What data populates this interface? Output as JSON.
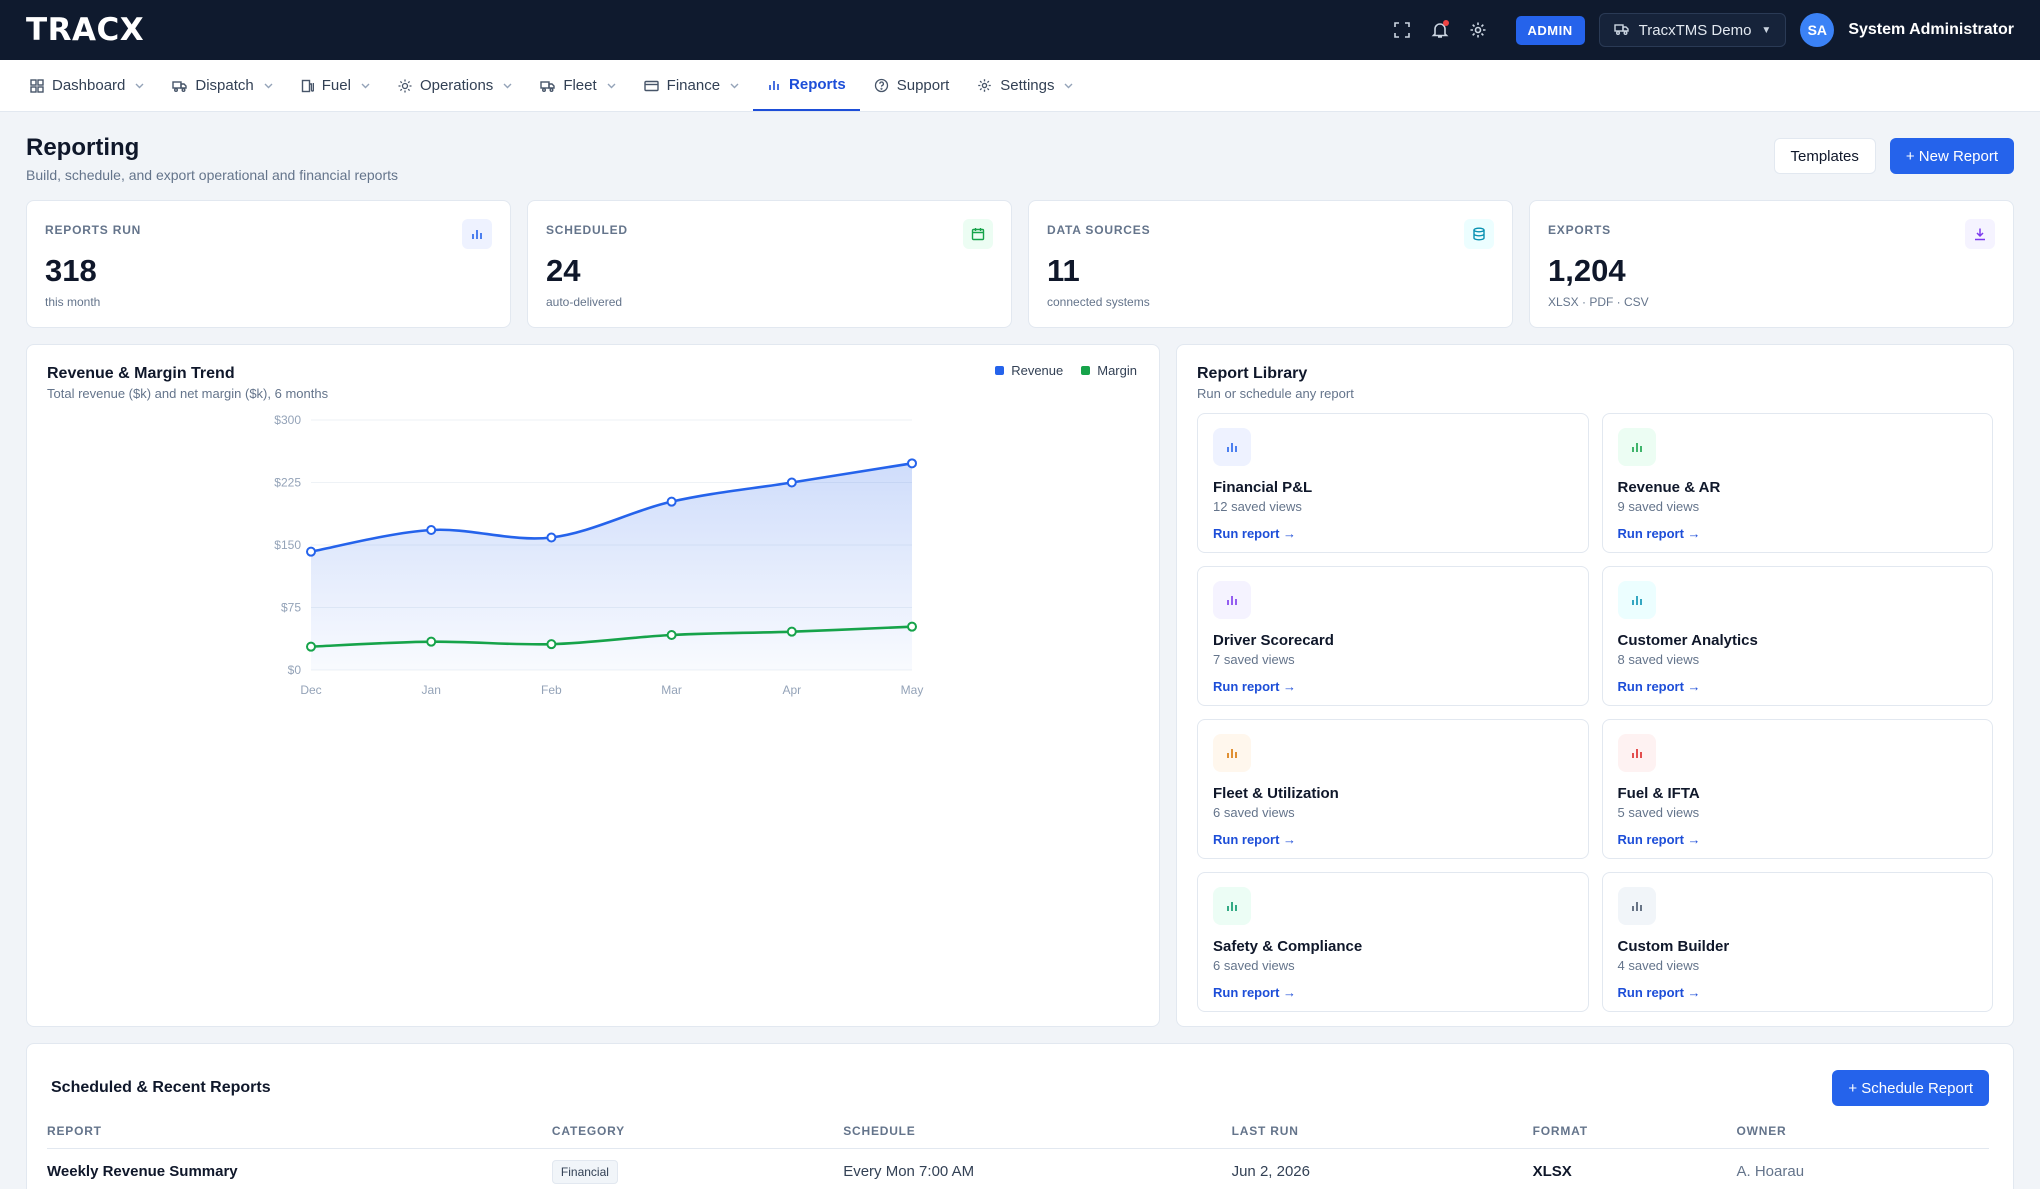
{
  "brand": {
    "logo": "TRACX"
  },
  "topbar": {
    "admin_badge": "ADMIN",
    "tenant": "TracxTMS Demo",
    "avatar_initials": "SA",
    "user_name": "System Administrator"
  },
  "nav": [
    {
      "label": "Dashboard",
      "icon": "grid-icon",
      "dropdown": true
    },
    {
      "label": "Dispatch",
      "icon": "truck-icon",
      "dropdown": true
    },
    {
      "label": "Fuel",
      "icon": "fuel-icon",
      "dropdown": true
    },
    {
      "label": "Operations",
      "icon": "sun-icon",
      "dropdown": true
    },
    {
      "label": "Fleet",
      "icon": "truck-icon",
      "dropdown": true
    },
    {
      "label": "Finance",
      "icon": "card-icon",
      "dropdown": true
    },
    {
      "label": "Reports",
      "icon": "bar-chart-icon",
      "dropdown": false,
      "active": true
    },
    {
      "label": "Support",
      "icon": "help-icon",
      "dropdown": false
    },
    {
      "label": "Settings",
      "icon": "gear-icon",
      "dropdown": true
    }
  ],
  "page": {
    "title": "Reporting",
    "subtitle": "Build, schedule, and export operational and financial reports",
    "templates_label": "Templates",
    "new_report_label": "+ New Report"
  },
  "stats": [
    {
      "label": "REPORTS RUN",
      "value": "318",
      "note": "this month",
      "icon": "bar-chart-icon",
      "color": "#2563eb",
      "bg": "#eef2ff"
    },
    {
      "label": "SCHEDULED",
      "value": "24",
      "note": "auto-delivered",
      "icon": "calendar-icon",
      "color": "#16a34a",
      "bg": "#ecfdf3"
    },
    {
      "label": "DATA SOURCES",
      "value": "11",
      "note": "connected systems",
      "icon": "database-icon",
      "color": "#0891b2",
      "bg": "#ecfeff"
    },
    {
      "label": "EXPORTS",
      "value": "1,204",
      "note": "XLSX · PDF · CSV",
      "icon": "download-icon",
      "color": "#7c3aed",
      "bg": "#f5f3ff"
    }
  ],
  "chart_panel": {
    "title": "Revenue & Margin Trend",
    "subtitle": "Total revenue ($k) and net margin ($k), 6 months"
  },
  "chart_data": {
    "type": "line",
    "title": "Revenue & Margin Trend",
    "subtitle": "Total revenue ($k) and net margin ($k), 6 months",
    "categories": [
      "Dec",
      "Jan",
      "Feb",
      "Mar",
      "Apr",
      "May"
    ],
    "ylim": [
      0,
      300
    ],
    "yticks": [
      0,
      75,
      150,
      225,
      300
    ],
    "ytick_labels": [
      "$0",
      "$75",
      "$150",
      "$225",
      "$300"
    ],
    "grid": true,
    "legend_position": "top-right",
    "series": [
      {
        "name": "Revenue",
        "color": "#2563eb",
        "fill": "area",
        "values": [
          142,
          168,
          159,
          202,
          225,
          248
        ]
      },
      {
        "name": "Margin",
        "color": "#16a34a",
        "values": [
          28,
          34,
          31,
          42,
          46,
          52
        ]
      }
    ]
  },
  "library": {
    "title": "Report Library",
    "subtitle": "Run or schedule any report",
    "run_label": "Run report →",
    "items": [
      {
        "name": "Financial P&L",
        "views": "12 saved views",
        "icon": "bar-chart-icon",
        "color": "#2563eb",
        "bg": "#eef2ff"
      },
      {
        "name": "Revenue & AR",
        "views": "9 saved views",
        "icon": "bar-chart-icon",
        "color": "#16a34a",
        "bg": "#ecfdf3"
      },
      {
        "name": "Driver Scorecard",
        "views": "7 saved views",
        "icon": "bar-chart-icon",
        "color": "#7c3aed",
        "bg": "#f5f3ff"
      },
      {
        "name": "Customer Analytics",
        "views": "8 saved views",
        "icon": "bar-chart-icon",
        "color": "#0891b2",
        "bg": "#ecfeff"
      },
      {
        "name": "Fleet & Utilization",
        "views": "6 saved views",
        "icon": "bar-chart-icon",
        "color": "#d97706",
        "bg": "#fff7ed"
      },
      {
        "name": "Fuel & IFTA",
        "views": "5 saved views",
        "icon": "bar-chart-icon",
        "color": "#dc2626",
        "bg": "#fef2f2"
      },
      {
        "name": "Safety & Compliance",
        "views": "6 saved views",
        "icon": "bar-chart-icon",
        "color": "#059669",
        "bg": "#ecfdf5"
      },
      {
        "name": "Custom Builder",
        "views": "4 saved views",
        "icon": "bar-chart-icon",
        "color": "#475569",
        "bg": "#f1f5f9"
      }
    ]
  },
  "scheduled": {
    "title": "Scheduled & Recent Reports",
    "schedule_button": "+ Schedule Report",
    "columns": [
      "REPORT",
      "CATEGORY",
      "SCHEDULE",
      "LAST RUN",
      "FORMAT",
      "OWNER"
    ],
    "rows": [
      {
        "report": "Weekly Revenue Summary",
        "category": "Financial",
        "schedule": "Every Mon 7:00 AM",
        "last_run": "Jun 2, 2026",
        "format": "XLSX",
        "owner": "A. Hoarau"
      }
    ]
  }
}
